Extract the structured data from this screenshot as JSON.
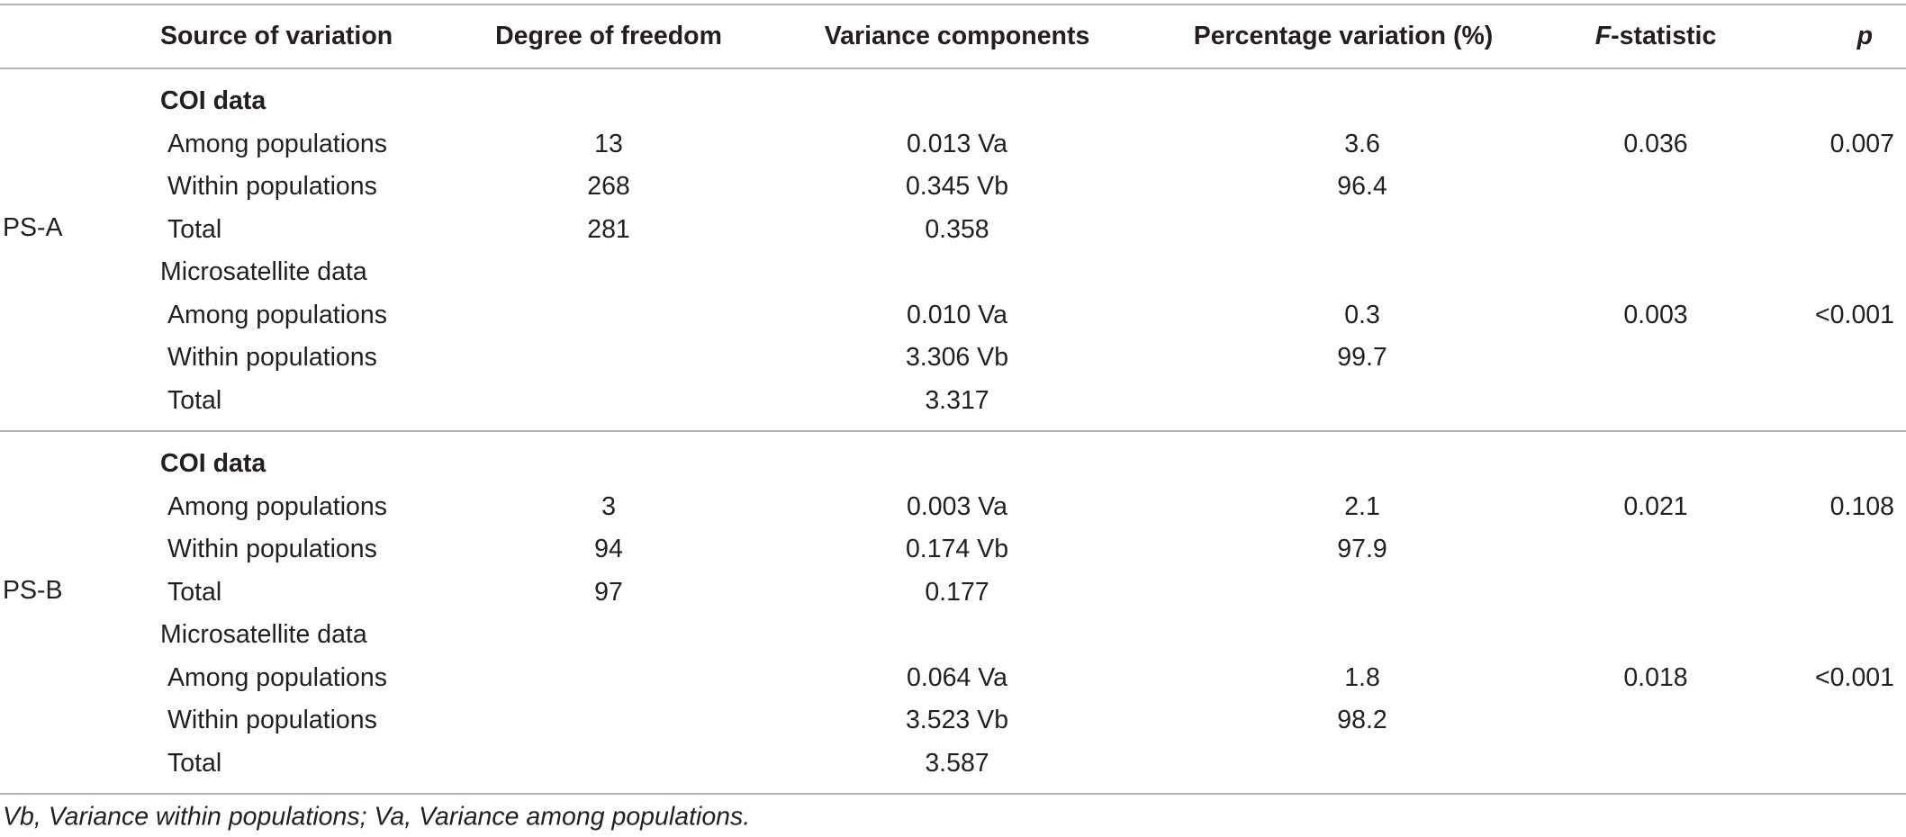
{
  "columns": {
    "source": "Source of variation",
    "df": "Degree of freedom",
    "variance": "Variance components",
    "percentage": "Percentage variation (%)",
    "f_stat_italic": "F",
    "f_stat_rest": "-statistic",
    "p": "p"
  },
  "groups": [
    {
      "label": "PS-A",
      "coi": {
        "title": "COI data",
        "rows": [
          {
            "source": "Among populations",
            "df": "13",
            "variance": "0.013 Va",
            "percentage": "3.6",
            "f": "0.036",
            "p": "0.007"
          },
          {
            "source": "Within populations",
            "df": "268",
            "variance": "0.345 Vb",
            "percentage": "96.4",
            "f": "",
            "p": ""
          },
          {
            "source": "Total",
            "df": "281",
            "variance": "0.358",
            "percentage": "",
            "f": "",
            "p": ""
          }
        ]
      },
      "micro": {
        "title": "Microsatellite data",
        "rows": [
          {
            "source": "Among populations",
            "df": "",
            "variance": "0.010 Va",
            "percentage": "0.3",
            "f": "0.003",
            "p": "<0.001"
          },
          {
            "source": "Within populations",
            "df": "",
            "variance": "3.306 Vb",
            "percentage": "99.7",
            "f": "",
            "p": ""
          },
          {
            "source": "Total",
            "df": "",
            "variance": "3.317",
            "percentage": "",
            "f": "",
            "p": ""
          }
        ]
      }
    },
    {
      "label": "PS-B",
      "coi": {
        "title": "COI data",
        "rows": [
          {
            "source": "Among populations",
            "df": "3",
            "variance": "0.003 Va",
            "percentage": "2.1",
            "f": "0.021",
            "p": "0.108"
          },
          {
            "source": "Within populations",
            "df": "94",
            "variance": "0.174 Vb",
            "percentage": "97.9",
            "f": "",
            "p": ""
          },
          {
            "source": "Total",
            "df": "97",
            "variance": "0.177",
            "percentage": "",
            "f": "",
            "p": ""
          }
        ]
      },
      "micro": {
        "title": "Microsatellite data",
        "rows": [
          {
            "source": "Among populations",
            "df": "",
            "variance": "0.064 Va",
            "percentage": "1.8",
            "f": "0.018",
            "p": "<0.001"
          },
          {
            "source": "Within populations",
            "df": "",
            "variance": "3.523 Vb",
            "percentage": "98.2",
            "f": "",
            "p": ""
          },
          {
            "source": "Total",
            "df": "",
            "variance": "3.587",
            "percentage": "",
            "f": "",
            "p": ""
          }
        ]
      }
    }
  ],
  "footnote": "Vb, Variance within populations; Va, Variance among populations."
}
